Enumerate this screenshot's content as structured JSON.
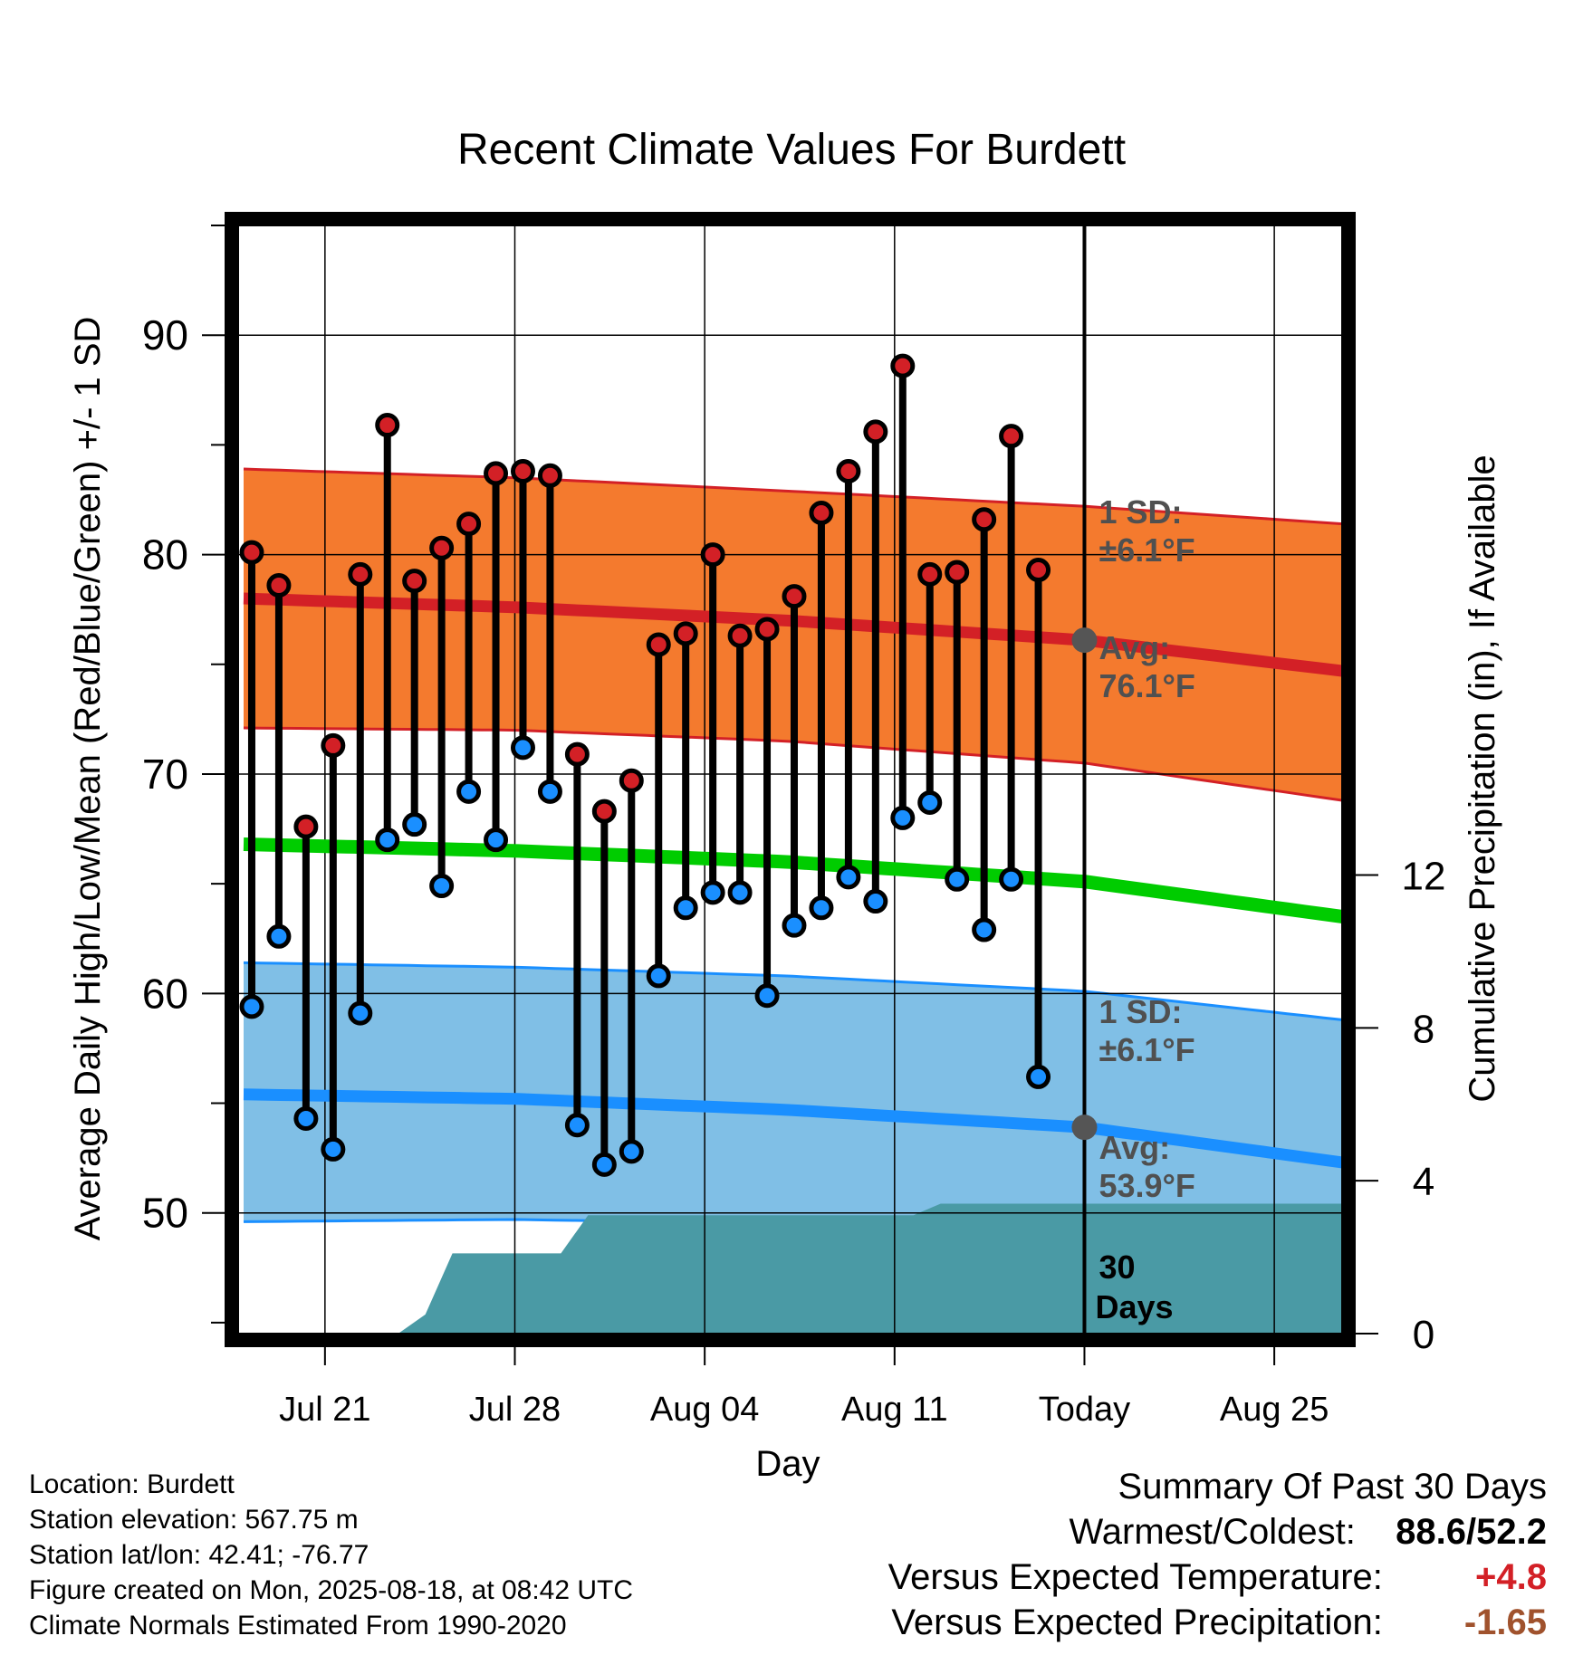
{
  "chart_data": {
    "type": "line",
    "title": "Recent Climate Values For Burdett",
    "xlabel": "Day",
    "ylabel": "Average Daily High/Low/Mean (Red/Blue/Green) +/- 1 SD",
    "y2label": "Cumulative Precipitation (in), If Available",
    "ylim": [
      44.5,
      95
    ],
    "y2lim": [
      0,
      29
    ],
    "yticks": [
      50,
      60,
      70,
      80,
      90
    ],
    "y2ticks": [
      0,
      4,
      8,
      12
    ],
    "xticks": [
      {
        "day": 3,
        "label": "Jul 21"
      },
      {
        "day": 10,
        "label": "Jul 28"
      },
      {
        "day": 17,
        "label": "Aug 04"
      },
      {
        "day": 24,
        "label": "Aug 11"
      },
      {
        "day": 31,
        "label": "Today"
      },
      {
        "day": 38,
        "label": "Aug 25"
      }
    ],
    "xlim": [
      -0.2,
      40.5
    ],
    "grid": true,
    "daily_high": [
      80.1,
      78.6,
      67.6,
      71.3,
      79.1,
      85.9,
      78.8,
      80.3,
      81.4,
      83.7,
      83.8,
      83.6,
      70.9,
      68.3,
      69.7,
      75.9,
      76.4,
      80.0,
      76.3,
      76.6,
      78.1,
      81.9,
      83.8,
      85.6,
      88.6,
      79.1,
      79.2,
      81.6,
      85.4,
      79.3
    ],
    "daily_low": [
      59.4,
      62.6,
      54.3,
      52.9,
      59.1,
      67.0,
      67.7,
      64.9,
      69.2,
      67.0,
      71.2,
      69.2,
      54.0,
      52.2,
      52.8,
      60.8,
      63.9,
      64.6,
      64.6,
      59.9,
      63.1,
      63.9,
      65.3,
      64.2,
      68.0,
      68.7,
      65.2,
      62.9,
      65.2,
      56.2
    ],
    "normals": {
      "days": [
        0,
        10,
        20,
        31,
        40.5
      ],
      "avg_high": [
        78.0,
        77.6,
        77.0,
        76.1,
        74.7
      ],
      "high_upper": [
        83.9,
        83.5,
        82.9,
        82.2,
        81.4
      ],
      "high_lower": [
        72.1,
        72.0,
        71.5,
        70.5,
        68.8
      ],
      "mean": [
        66.8,
        66.5,
        66.0,
        65.1,
        63.5
      ],
      "avg_low": [
        55.4,
        55.2,
        54.7,
        53.9,
        52.3
      ],
      "low_upper": [
        61.4,
        61.2,
        60.8,
        60.1,
        58.8
      ],
      "low_lower": [
        49.6,
        49.7,
        49.5,
        49.2,
        49.0
      ]
    },
    "precip_cumulative": {
      "days": [
        0,
        5.7,
        6.7,
        7.7,
        11.7,
        12.7,
        24.7,
        25.7,
        40.5
      ],
      "values": [
        0,
        0,
        0.5,
        2.1,
        2.1,
        3.1,
        3.1,
        3.4,
        3.4
      ]
    },
    "annotations": {
      "high_sd_label": "1 SD:",
      "high_sd_value": "±6.1°F",
      "high_avg_label": "Avg:",
      "high_avg_value": "76.1°F",
      "low_sd_label": "1 SD:",
      "low_sd_value": "±6.1°F",
      "low_avg_label": "Avg:",
      "low_avg_value": "53.9°F",
      "days_label_1": "30",
      "days_label_2": "Days",
      "today_high_avg": 76.1,
      "today_low_avg": 53.9
    },
    "colors": {
      "high_band": "#f47a2e",
      "high_line": "#d32026",
      "low_band": "#80bfe6",
      "low_line": "#1a8fff",
      "mean_line": "#00cc00",
      "precip": "#4a9aa5",
      "high_dot": "#d32026",
      "low_dot": "#1a8fff",
      "ann_text": "#505050"
    }
  },
  "footer": {
    "location": "Location: Burdett",
    "elevation": "Station elevation: 567.75 m",
    "latlon": "Station lat/lon: 42.41; -76.77",
    "created": "Figure created on Mon, 2025-08-18, at 08:42 UTC",
    "normals": "Climate Normals Estimated From 1990-2020"
  },
  "summary": {
    "title": "Summary Of Past 30 Days",
    "warm_cold_label": "Warmest/Coldest:",
    "warm_cold_value": "88.6/52.2",
    "temp_label": "Versus Expected Temperature:",
    "temp_value": "+4.8",
    "temp_color": "#d32026",
    "precip_label": "Versus Expected Precipitation:",
    "precip_value": "-1.65",
    "precip_color": "#a0522d"
  }
}
